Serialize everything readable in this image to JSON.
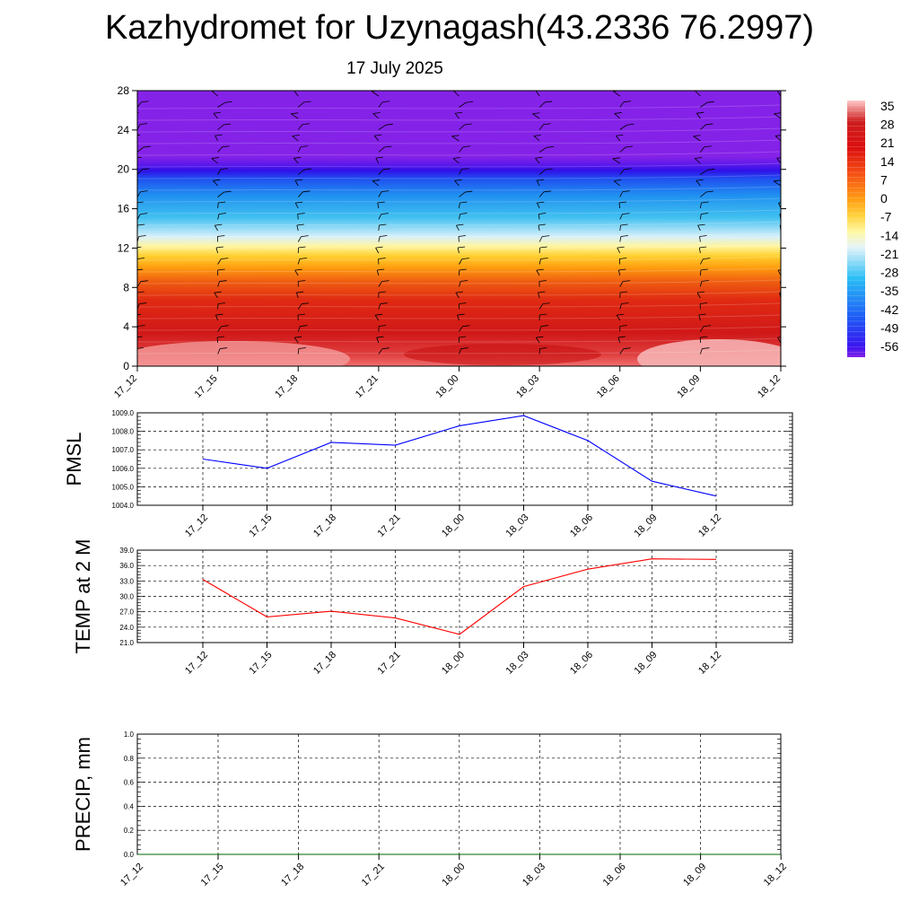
{
  "page": {
    "title": "Kazhydromet for Uzynagash(43.2336 76.2997)",
    "subtitle": "17 July 2025"
  },
  "chart_data": [
    {
      "type": "heatmap",
      "xcategories": [
        "17_12",
        "17_15",
        "17_18",
        "17_21",
        "18_00",
        "18_03",
        "18_06",
        "18_09",
        "18_12"
      ],
      "ylim": [
        0,
        28
      ],
      "yticks": [
        0,
        4,
        8,
        12,
        16,
        20,
        24,
        28
      ],
      "colorbar": {
        "labels": [
          35,
          28,
          21,
          14,
          7,
          0,
          -7,
          -14,
          -21,
          -28,
          -35,
          -42,
          -49,
          -56
        ],
        "range": [
          -60,
          38
        ],
        "colors": {
          "t_-60": "#8522e8",
          "t_-56": "#3a14f0",
          "t_-45": "#1e5af5",
          "t_-30": "#28bdf5",
          "t_-18": "#e6f4fa",
          "t_-12": "#fff8a0",
          "t_-6": "#ffd23c",
          "t_0": "#ffa014",
          "t_10": "#f55014",
          "t_20": "#dc0f0f",
          "t_30": "#cd1e1e",
          "t_38": "#ffc8c8"
        }
      }
    },
    {
      "type": "line",
      "ylabel": "PMSL",
      "x": [
        "17_12",
        "17_15",
        "17_18",
        "17_21",
        "18_00",
        "18_03",
        "18_06",
        "18_09",
        "18_12"
      ],
      "values": [
        1006.5,
        1006.0,
        1007.4,
        1007.25,
        1008.3,
        1008.85,
        1007.5,
        1005.3,
        1004.5
      ],
      "ylim": [
        1004.0,
        1009.0
      ],
      "yticks": [
        "1004.0",
        "1005.0",
        "1006.0",
        "1007.0",
        "1008.0",
        "1009.0"
      ],
      "color": "#0000ff"
    },
    {
      "type": "line",
      "ylabel": "TEMP at 2 M",
      "x": [
        "17_12",
        "17_15",
        "17_18",
        "17_21",
        "18_00",
        "18_03",
        "18_06",
        "18_09",
        "18_12"
      ],
      "values": [
        33.3,
        26.0,
        27.1,
        25.8,
        22.6,
        31.9,
        35.3,
        37.3,
        37.2
      ],
      "ylim": [
        21.0,
        39.0
      ],
      "yticks": [
        "21.0",
        "24.0",
        "27.0",
        "30.0",
        "33.0",
        "36.0",
        "39.0"
      ],
      "color": "#ff0000"
    },
    {
      "type": "line",
      "ylabel": "PRECIP, mm",
      "x": [
        "17_12",
        "17_15",
        "17_18",
        "17_21",
        "18_00",
        "18_03",
        "18_06",
        "18_09",
        "18_12"
      ],
      "values": [
        0,
        0,
        0,
        0,
        0,
        0,
        0,
        0,
        0
      ],
      "ylim": [
        0.0,
        1.0
      ],
      "yticks": [
        "0.0",
        "0.2",
        "0.4",
        "0.6",
        "0.8",
        "1.0"
      ],
      "color": "#006400"
    }
  ]
}
